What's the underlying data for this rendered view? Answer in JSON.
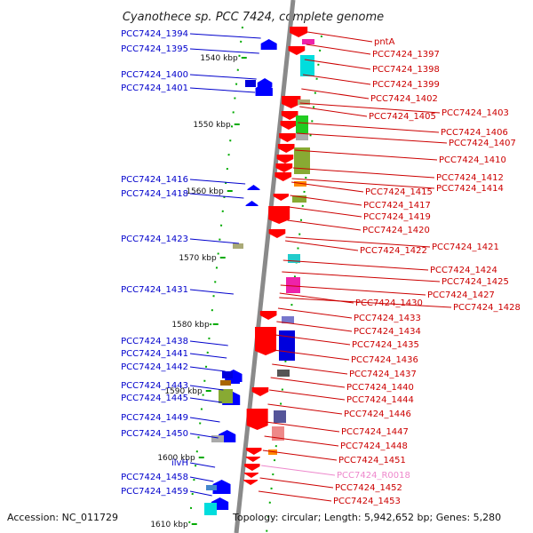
{
  "title": "Cyanothece sp. PCC 7424, complete genome",
  "footer": {
    "accession": "Accession: NC_011729",
    "topology": "Topology: circular; Length: 5,942,652 bp; Genes: 5,280"
  },
  "colors": {
    "backbone": "#808080",
    "forward_gene": "#ff0000",
    "reverse_gene": "#0000ff",
    "left_label": "#0000cc",
    "right_label": "#cc0000",
    "rna_label": "#ee88cc",
    "tick": "#00aa00"
  },
  "scale_labels": [
    "1540 kbp",
    "1550 kbp",
    "1560 kbp",
    "1570 kbp",
    "1580 kbp",
    "1590 kbp",
    "1600 kbp",
    "1610 kbp"
  ],
  "left_labels": [
    "PCC7424_1394",
    "PCC7424_1395",
    "PCC7424_1400",
    "PCC7424_1401",
    "PCC7424_1416",
    "PCC7424_1418",
    "PCC7424_1423",
    "PCC7424_1431",
    "PCC7424_1438",
    "PCC7424_1441",
    "PCC7424_1442",
    "PCC7424_1443",
    "PCC7424_1445",
    "PCC7424_1449",
    "PCC7424_1450",
    "ilvH",
    "PCC7424_1458",
    "PCC7424_1459"
  ],
  "right_labels": [
    "pntA",
    "PCC7424_1397",
    "PCC7424_1398",
    "PCC7424_1399",
    "PCC7424_1402",
    "PCC7424_1403",
    "PCC7424_1405",
    "PCC7424_1406",
    "PCC7424_1407",
    "PCC7424_1410",
    "PCC7424_1412",
    "PCC7424_1414",
    "PCC7424_1415",
    "PCC7424_1417",
    "PCC7424_1419",
    "PCC7424_1420",
    "PCC7424_1421",
    "PCC7424_1422",
    "PCC7424_1424",
    "PCC7424_1425",
    "PCC7424_1427",
    "PCC7424_1428",
    "PCC7424_1430",
    "PCC7424_1433",
    "PCC7424_1434",
    "PCC7424_1435",
    "PCC7424_1436",
    "PCC7424_1437",
    "PCC7424_1440",
    "PCC7424_1444",
    "PCC7424_1446",
    "PCC7424_1447",
    "PCC7424_1448",
    "PCC7424_1451",
    "PCC7424_R0018",
    "PCC7424_1452",
    "PCC7424_1453"
  ]
}
